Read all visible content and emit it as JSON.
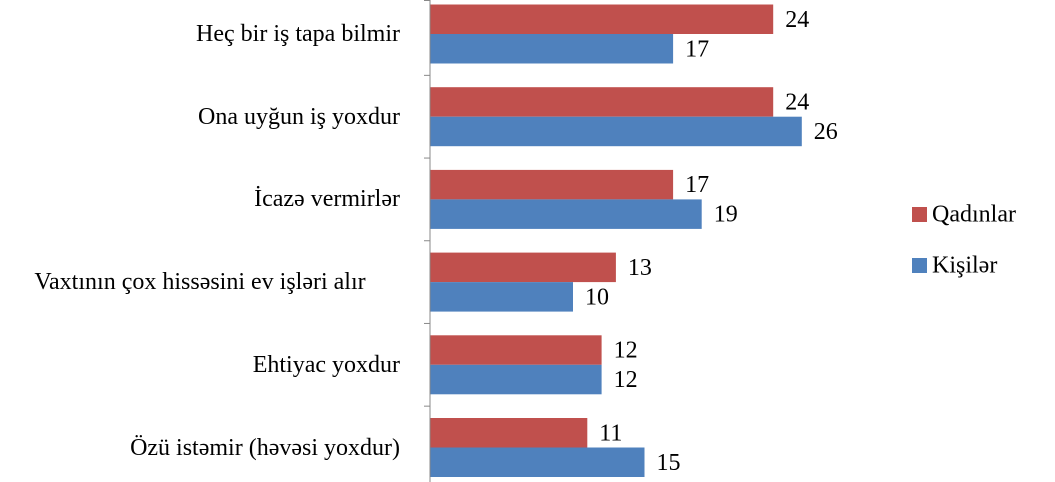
{
  "chart_data": {
    "type": "bar",
    "orientation": "horizontal",
    "categories": [
      "Heç bir iş tapa bilmir",
      "Ona uyğun iş yoxdur",
      "İcazə vermirlər",
      "Vaxtının çox hissəsini ev işləri alır",
      "Ehtiyac yoxdur",
      "Özü istəmir (həvəsi yoxdur)"
    ],
    "series": [
      {
        "name": "Qadınlar",
        "color": "#c0504d",
        "values": [
          24,
          24,
          17,
          13,
          12,
          11
        ]
      },
      {
        "name": "Kişilər",
        "color": "#4f81bd",
        "values": [
          17,
          26,
          19,
          10,
          12,
          15
        ]
      }
    ],
    "xlim": [
      0,
      30
    ],
    "legend": "right"
  }
}
